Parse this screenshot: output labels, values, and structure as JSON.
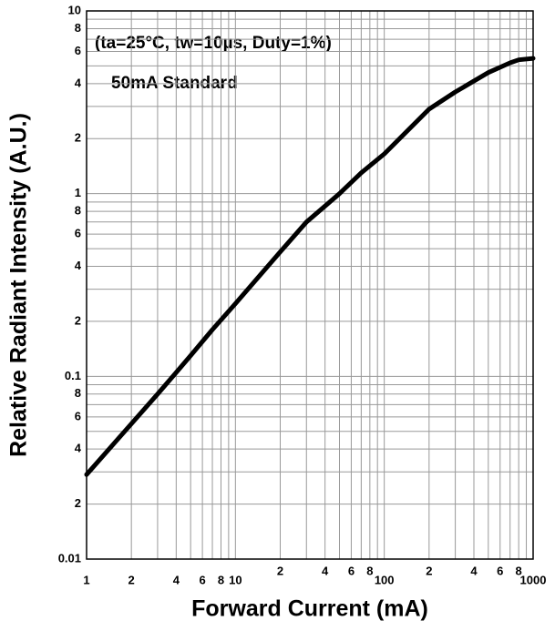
{
  "chart_data": {
    "type": "line",
    "x_label": "Forward Current (mA)",
    "y_label": "Relative Radiant Intensity (A.U.)",
    "annotations": [
      "(ta=25°C, tw=10µs, Duty=1%)",
      "50mA Standard"
    ],
    "x": [
      1,
      2,
      3,
      4,
      5,
      7,
      10,
      20,
      30,
      50,
      70,
      100,
      200,
      300,
      500,
      700,
      800,
      1000
    ],
    "series": [
      {
        "name": "Relative Radiant Intensity",
        "color": "#000000",
        "values": [
          0.029,
          0.055,
          0.08,
          0.105,
          0.13,
          0.18,
          0.25,
          0.48,
          0.7,
          1.0,
          1.3,
          1.65,
          2.9,
          3.6,
          4.6,
          5.2,
          5.4,
          5.5
        ]
      }
    ],
    "log_x": true,
    "log_y": true,
    "grid": true,
    "xlim": [
      1,
      1000
    ],
    "ylim": [
      0.01,
      10
    ],
    "xticks": [
      1,
      2,
      4,
      6,
      8,
      10,
      {
        "value": 20,
        "label": "2"
      },
      {
        "value": 40,
        "label": "4"
      },
      {
        "value": 60,
        "label": "6"
      },
      {
        "value": 80,
        "label": "8"
      },
      100,
      {
        "value": 200,
        "label": "2"
      },
      {
        "value": 400,
        "label": "4"
      },
      {
        "value": 600,
        "label": "6"
      },
      {
        "value": 800,
        "label": "8"
      },
      1000
    ],
    "yticks": [
      0.01,
      {
        "value": 0.02,
        "label": "2"
      },
      {
        "value": 0.04,
        "label": "4"
      },
      {
        "value": 0.06,
        "label": "6"
      },
      {
        "value": 0.08,
        "label": "8"
      },
      0.1,
      {
        "value": 0.2,
        "label": "2"
      },
      {
        "value": 0.4,
        "label": "4"
      },
      {
        "value": 0.6,
        "label": "6"
      },
      {
        "value": 0.8,
        "label": "8"
      },
      1,
      {
        "value": 2,
        "label": "2"
      },
      {
        "value": 4,
        "label": "4"
      },
      {
        "value": 6,
        "label": "6"
      },
      {
        "value": 8,
        "label": "8"
      },
      10
    ],
    "x_minor_grid": [
      3,
      5,
      7,
      9,
      30,
      50,
      70,
      90,
      300,
      500,
      700,
      900
    ],
    "y_minor_grid": [
      0.03,
      0.05,
      0.07,
      0.09,
      0.3,
      0.5,
      0.7,
      0.9,
      3,
      5,
      7,
      9
    ]
  }
}
